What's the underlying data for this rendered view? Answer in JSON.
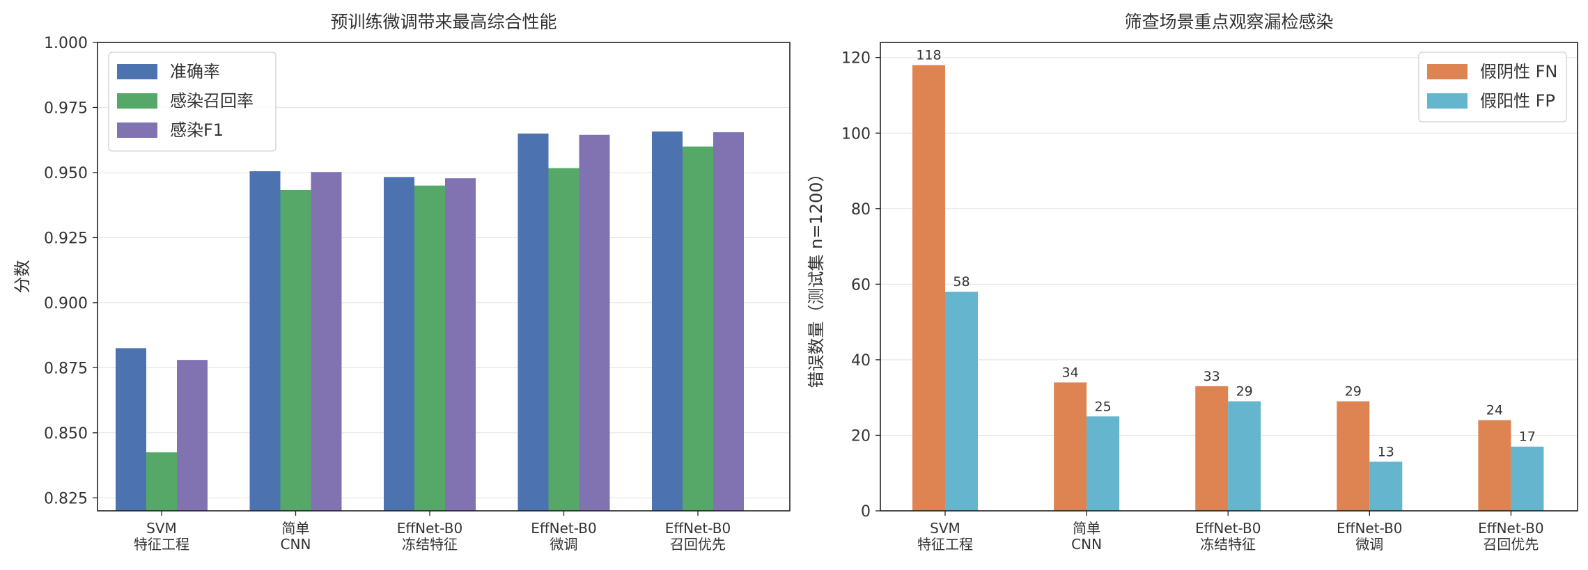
{
  "chart_data": [
    {
      "type": "bar",
      "title": "预训练微调带来最高综合性能",
      "ylabel": "分数",
      "xlabel": "",
      "ylim": [
        0.82,
        1.0
      ],
      "yticks": [
        "0.825",
        "0.850",
        "0.875",
        "0.900",
        "0.925",
        "0.950",
        "0.975",
        "1.000"
      ],
      "categories": [
        [
          "SVM",
          "特征工程"
        ],
        [
          "简单",
          "CNN"
        ],
        [
          "EffNet-B0",
          "冻结特征"
        ],
        [
          "EffNet-B0",
          "微调"
        ],
        [
          "EffNet-B0",
          "召回优先"
        ]
      ],
      "series": [
        {
          "name": "准确率",
          "color": "#4c72b0",
          "values": [
            0.8825,
            0.9505,
            0.9483,
            0.965,
            0.9658
          ]
        },
        {
          "name": "感染召回率",
          "color": "#55a868",
          "values": [
            0.8425,
            0.9433,
            0.945,
            0.9517,
            0.96
          ]
        },
        {
          "name": "感染F1",
          "color": "#8172b2",
          "values": [
            0.878,
            0.9502,
            0.9478,
            0.9645,
            0.9655
          ]
        }
      ],
      "legend": "top-left",
      "grid": "horizontal"
    },
    {
      "type": "bar",
      "title": "筛查场景重点观察漏检感染",
      "ylabel": "错误数量（测试集 n=1200）",
      "xlabel": "",
      "ylim": [
        0,
        124
      ],
      "yticks": [
        "0",
        "20",
        "40",
        "60",
        "80",
        "100",
        "120"
      ],
      "categories": [
        [
          "SVM",
          "特征工程"
        ],
        [
          "简单",
          "CNN"
        ],
        [
          "EffNet-B0",
          "冻结特征"
        ],
        [
          "EffNet-B0",
          "微调"
        ],
        [
          "EffNet-B0",
          "召回优先"
        ]
      ],
      "series": [
        {
          "name": "假阴性 FN",
          "color": "#dd8452",
          "values": [
            118,
            34,
            33,
            29,
            24
          ]
        },
        {
          "name": "假阳性 FP",
          "color": "#64b5cd",
          "values": [
            58,
            25,
            29,
            13,
            17
          ]
        }
      ],
      "value_labels": true,
      "legend": "top-right",
      "grid": "horizontal"
    }
  ]
}
